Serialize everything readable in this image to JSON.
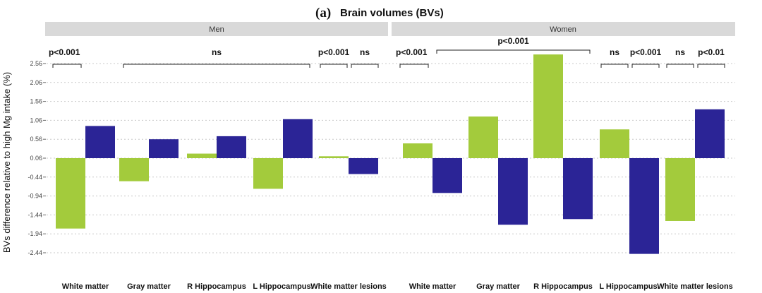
{
  "chart_data": {
    "type": "bar",
    "title_prefix": "(a)",
    "title": "Brain volumes (BVs)",
    "ylabel": "BVs difference relative to high Mg intake (%)",
    "xlabel": "",
    "yticks": [
      2.56,
      2.06,
      1.56,
      1.06,
      0.56,
      0.06,
      -0.44,
      -0.94,
      -1.44,
      -1.94,
      -2.44
    ],
    "ylim": [
      -2.7,
      2.78
    ],
    "grid": true,
    "colors": {
      "series1": "#a3cb3c",
      "series2": "#2b2496"
    },
    "panels": [
      {
        "name": "Men",
        "categories": [
          "White matter",
          "Gray matter",
          "R Hippocampus",
          "L Hippocampus.",
          "White matter lesions"
        ],
        "series": [
          {
            "name": "series1",
            "values": [
              -1.8,
              -0.55,
              0.18,
              -0.75,
              0.11
            ]
          },
          {
            "name": "series2",
            "values": [
              0.91,
              0.56,
              0.64,
              1.09,
              -0.36
            ]
          }
        ],
        "significance": [
          {
            "label": "p<0.001",
            "from": 0,
            "to": 0
          },
          {
            "label": "ns",
            "from": 1,
            "to": 3
          },
          {
            "label": "p<0.001",
            "from": 4,
            "to": 4,
            "part": "left"
          },
          {
            "label": "ns",
            "from": 4,
            "to": 4,
            "part": "right"
          }
        ]
      },
      {
        "name": "Women",
        "categories": [
          "White matter",
          "Gray matter",
          "R Hippocampus",
          "L Hippocampus.",
          "White matter lesions"
        ],
        "series": [
          {
            "name": "series1",
            "values": [
              0.45,
              1.16,
              2.8,
              0.82,
              -1.6
            ]
          },
          {
            "name": "series2",
            "values": [
              -0.86,
              -1.7,
              -1.55,
              -2.47,
              1.35
            ]
          }
        ],
        "significance": [
          {
            "label": "p<0.001",
            "from": 0,
            "to": 0
          },
          {
            "label": "p<0.001",
            "from": 0.5,
            "to": 2,
            "raised": true
          },
          {
            "label": "ns",
            "from": 3,
            "to": 3,
            "part": "left"
          },
          {
            "label": "p<0.001",
            "from": 3,
            "to": 3,
            "part": "right"
          },
          {
            "label": "ns",
            "from": 4,
            "to": 4,
            "part": "left"
          },
          {
            "label": "p<0.01",
            "from": 4,
            "to": 4,
            "part": "right"
          }
        ]
      }
    ]
  }
}
